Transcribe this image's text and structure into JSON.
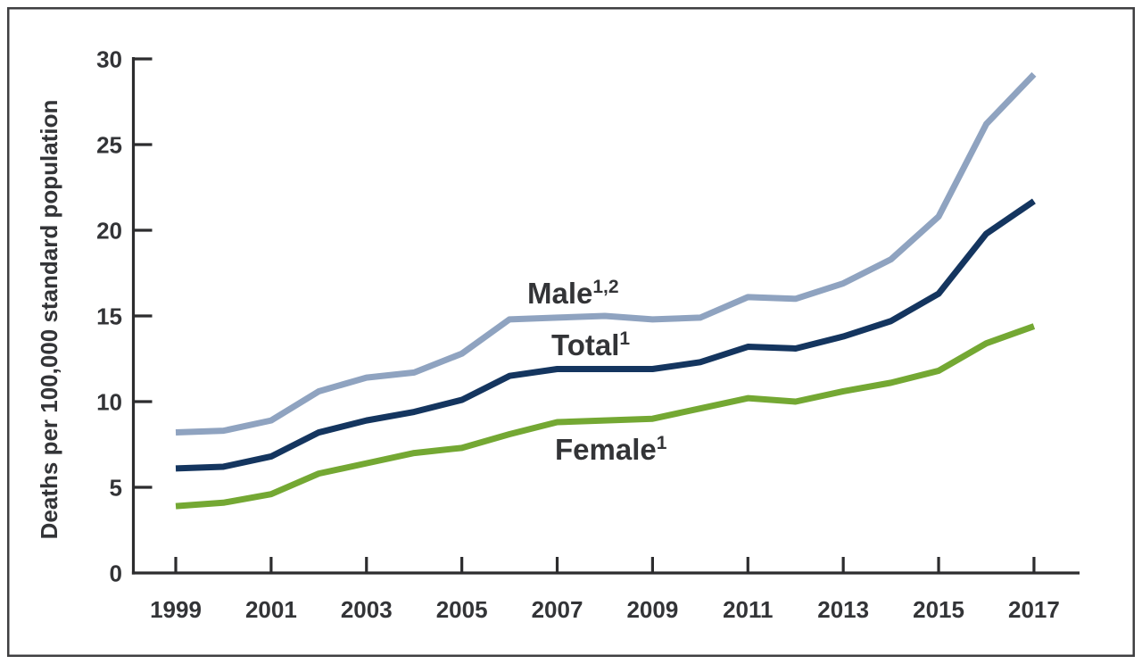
{
  "colors": {
    "axis": "#2c2c2e",
    "text": "#333437",
    "border": "#3f3f41",
    "background": "#ffffff",
    "male_line": "#8fa3c0",
    "total_line": "#14355f",
    "female_line": "#74a833"
  },
  "chart_data": {
    "type": "line",
    "title": "",
    "xlabel": "",
    "ylabel": "Deaths per 100,000 standard population",
    "x": [
      1999,
      2000,
      2001,
      2002,
      2003,
      2004,
      2005,
      2006,
      2007,
      2008,
      2009,
      2010,
      2011,
      2012,
      2013,
      2014,
      2015,
      2016,
      2017
    ],
    "xticks": [
      1999,
      2001,
      2003,
      2005,
      2007,
      2009,
      2011,
      2013,
      2015,
      2017
    ],
    "yticks": [
      0,
      5,
      10,
      15,
      20,
      25,
      30
    ],
    "ylim": [
      0,
      30
    ],
    "xlim": [
      1998.1,
      2018.0
    ],
    "grid": false,
    "legend": "inline labels beside lines",
    "series": [
      {
        "name": "Male",
        "label_sup": "1,2",
        "color": "#8fa3c0",
        "values": [
          8.2,
          8.3,
          8.9,
          10.6,
          11.4,
          11.7,
          12.8,
          14.8,
          14.9,
          15.0,
          14.8,
          14.9,
          16.1,
          16.0,
          16.9,
          18.3,
          20.8,
          26.2,
          29.1
        ]
      },
      {
        "name": "Total",
        "label_sup": "1",
        "color": "#14355f",
        "values": [
          6.1,
          6.2,
          6.8,
          8.2,
          8.9,
          9.4,
          10.1,
          11.5,
          11.9,
          11.9,
          11.9,
          12.3,
          13.2,
          13.1,
          13.8,
          14.7,
          16.3,
          19.8,
          21.7
        ]
      },
      {
        "name": "Female",
        "label_sup": "1",
        "color": "#74a833",
        "values": [
          3.9,
          4.1,
          4.6,
          5.8,
          6.4,
          7.0,
          7.3,
          8.1,
          8.8,
          8.9,
          9.0,
          9.6,
          10.2,
          10.0,
          10.6,
          11.1,
          11.8,
          13.4,
          14.4
        ]
      }
    ]
  }
}
